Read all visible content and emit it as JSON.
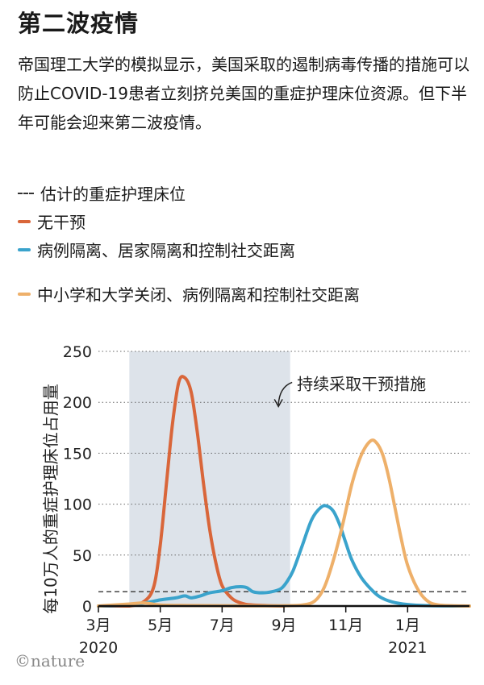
{
  "title": "第二波疫情",
  "description": "帝国理工大学的模拟显示，美国采取的遏制病毒传播的措施可以防止COVID-19患者立刻挤兑美国的重症护理床位资源。但下半年可能会迎来第二波疫情。",
  "legend": [
    {
      "label": "估计的重症护理床位",
      "style": "dashed",
      "color": "#444444"
    },
    {
      "label": "无干预",
      "style": "solid",
      "color": "#d9663a"
    },
    {
      "label": "病例隔离、居家隔离和控制社交距离",
      "style": "solid",
      "color": "#3aa3cc"
    },
    {
      "label": "中小学和大学关闭、病例隔离和控制社交距离",
      "style": "solid",
      "color": "#eeb06a"
    }
  ],
  "credit": "©nature",
  "chart_data": {
    "type": "line",
    "ylabel": "每10万人的重症护理床位占用量",
    "ylim": [
      0,
      250
    ],
    "yticks": [
      0,
      50,
      100,
      150,
      200,
      250
    ],
    "xticks": [
      {
        "label": "3月",
        "year": "2020",
        "month": 3
      },
      {
        "label": "5月",
        "year": "",
        "month": 5
      },
      {
        "label": "7月",
        "year": "",
        "month": 7
      },
      {
        "label": "9月",
        "year": "",
        "month": 9
      },
      {
        "label": "11月",
        "year": "",
        "month": 11
      },
      {
        "label": "1月",
        "year": "2021",
        "month": 13
      }
    ],
    "xlim": [
      3,
      15
    ],
    "grid": "horizontal-dotted",
    "shaded_region": {
      "from": 4,
      "to": 9.2,
      "color": "#dde3ea"
    },
    "annotation": {
      "text": "持续采取干预措施",
      "x": 8.9,
      "y": 218
    },
    "reference_line": {
      "name": "估计的重症护理床位",
      "value": 14
    },
    "series": [
      {
        "color": "#d9663a",
        "x": [
          3.0,
          4.0,
          4.5,
          4.8,
          5.0,
          5.2,
          5.4,
          5.6,
          5.8,
          6.0,
          6.2,
          6.4,
          6.6,
          6.8,
          7.0,
          7.3,
          7.6,
          8.0,
          9.0
        ],
        "y": [
          0,
          0,
          5,
          20,
          60,
          120,
          180,
          220,
          224,
          210,
          170,
          120,
          75,
          42,
          20,
          8,
          3,
          1,
          0
        ]
      },
      {
        "color": "#3aa3cc",
        "x": [
          3.0,
          4.0,
          4.5,
          5.0,
          5.5,
          5.8,
          6.0,
          6.3,
          6.6,
          7.0,
          7.3,
          7.6,
          7.8,
          8.0,
          8.3,
          8.6,
          8.9,
          9.1,
          9.3,
          9.6,
          9.9,
          10.2,
          10.4,
          10.6,
          10.8,
          11.0,
          11.2,
          11.5,
          11.8,
          12.1,
          12.5,
          13.0,
          13.5,
          14.5,
          15.0
        ],
        "y": [
          0,
          1,
          3,
          6,
          8,
          10,
          8,
          10,
          13,
          15,
          18,
          19,
          18,
          14,
          13,
          14,
          17,
          24,
          35,
          60,
          85,
          97,
          98,
          93,
          80,
          62,
          45,
          28,
          17,
          9,
          4,
          1.5,
          0.5,
          0,
          0
        ]
      },
      {
        "color": "#eeb06a",
        "x": [
          3.0,
          4.0,
          4.5,
          5.0,
          6.0,
          7.0,
          8.0,
          9.0,
          9.6,
          10.0,
          10.3,
          10.6,
          10.9,
          11.2,
          11.5,
          11.8,
          12.0,
          12.2,
          12.4,
          12.6,
          12.8,
          13.0,
          13.3,
          13.6,
          14.0,
          15.0
        ],
        "y": [
          0,
          2,
          3,
          1,
          0.5,
          0.3,
          0.2,
          0.3,
          1,
          5,
          18,
          45,
          80,
          120,
          148,
          162,
          160,
          148,
          125,
          95,
          65,
          40,
          18,
          6,
          1,
          0
        ]
      }
    ]
  }
}
